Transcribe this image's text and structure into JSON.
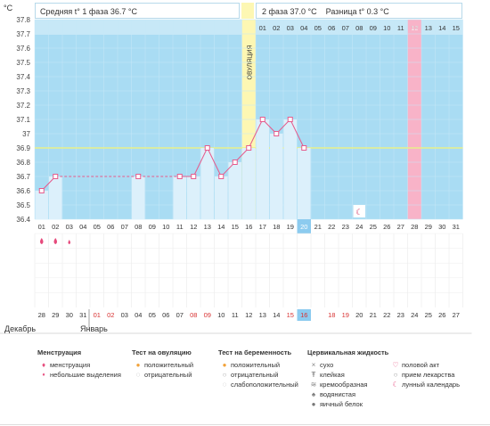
{
  "header": {
    "phase1_label": "Средняя t° 1 фаза",
    "phase1_value": "36.7 °C",
    "phase2_label": "2 фаза",
    "phase2_value": "37.0 °C",
    "diff_label": "Разница t°",
    "diff_value": "0.3 °C"
  },
  "ovulation_label": "ОВУЛЯЦИЯ",
  "unit_label": "°C",
  "months": {
    "first": "Декабрь",
    "second": "Январь"
  },
  "chart_data": {
    "type": "line",
    "y_ticks": [
      "37.8",
      "37.7",
      "37.6",
      "37.5",
      "37.4",
      "37.3",
      "37.2",
      "37.1",
      "37",
      "36.9",
      "36.8",
      "36.7",
      "36.6",
      "36.5",
      "36.4"
    ],
    "ylim": [
      36.4,
      37.8
    ],
    "coverline": 36.9,
    "cycle_days": [
      "01",
      "02",
      "03",
      "04",
      "05",
      "06",
      "07",
      "08",
      "09",
      "10",
      "11",
      "12",
      "13",
      "14",
      "15",
      "16",
      "17",
      "18",
      "19",
      "20",
      "21",
      "22",
      "23",
      "24",
      "25",
      "26",
      "27",
      "28",
      "29",
      "30",
      "31"
    ],
    "top_day_labels": [
      "01",
      "02",
      "03",
      "04",
      "05",
      "06",
      "07",
      "08",
      "09",
      "10",
      "11",
      "12",
      "13",
      "14",
      "15"
    ],
    "top_highlight_label": "12",
    "ovulation_day": 16,
    "highlight_day": 28,
    "today_day": 20,
    "moon_day": 24,
    "temperatures": [
      36.6,
      36.7,
      null,
      null,
      null,
      null,
      null,
      36.7,
      null,
      null,
      36.7,
      36.7,
      36.9,
      36.7,
      36.8,
      36.9,
      37.1,
      37.0,
      37.1,
      36.9,
      null,
      null,
      null,
      null,
      null,
      null,
      null,
      null,
      null,
      null,
      null
    ],
    "menstruation_days": {
      "heavy": [
        1,
        2
      ],
      "light": [
        3
      ]
    },
    "dates": [
      "28",
      "29",
      "30",
      "31",
      "01",
      "02",
      "03",
      "04",
      "05",
      "06",
      "07",
      "08",
      "09",
      "10",
      "11",
      "12",
      "13",
      "14",
      "15",
      "16",
      "17",
      "18",
      "19",
      "20",
      "21",
      "22",
      "23",
      "24",
      "25",
      "26",
      "27"
    ],
    "date_red": [
      4,
      5,
      11,
      12,
      18,
      19,
      21,
      22
    ],
    "date_today_index": 20
  },
  "legend": {
    "menstruation": {
      "title": "Менструация",
      "items": [
        "менструация",
        "небольшие выделения"
      ]
    },
    "ovulation_test": {
      "title": "Тест на овуляцию",
      "items": [
        "положительный",
        "отрицательный"
      ]
    },
    "pregnancy_test": {
      "title": "Тест на беременность",
      "items": [
        "положительный",
        "отрицательный",
        "слабоположительный"
      ]
    },
    "cervical": {
      "title": "Цервикальная жидкость",
      "items": [
        "сухо",
        "клейкая",
        "кремообразная",
        "водянистая",
        "яичный белок"
      ]
    },
    "other": {
      "items": [
        "половой акт",
        "прием лекарства",
        "лунный календарь"
      ]
    }
  },
  "colors": {
    "plot_bg": "#a9dcf3",
    "bar": "#dcf0fb",
    "line": "#e65b8c",
    "ovulation": "#fdf7b3",
    "highlight": "#f8b3c8",
    "coverline": "#e8f08a",
    "today": "#8ccbef",
    "red_date": "#d83232"
  }
}
